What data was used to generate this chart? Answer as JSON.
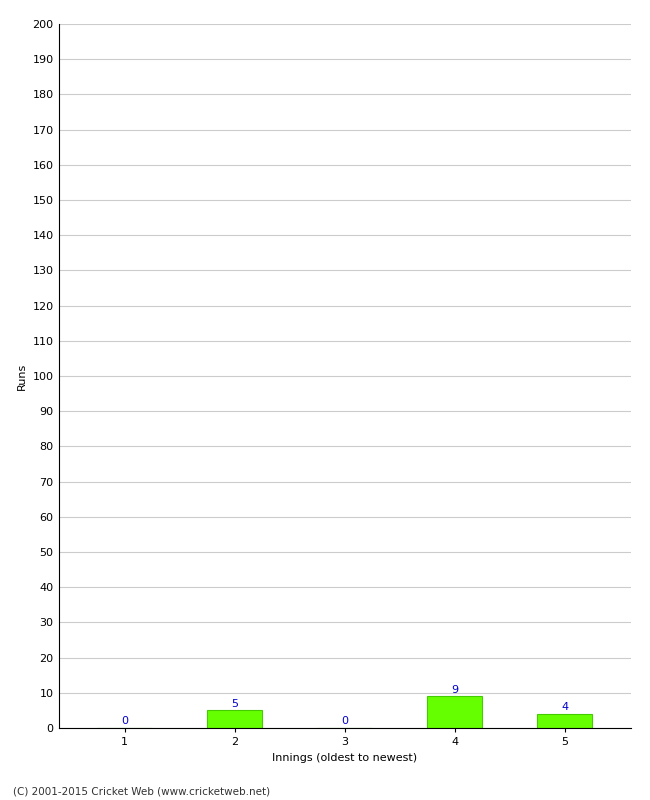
{
  "xlabel": "Innings (oldest to newest)",
  "ylabel": "Runs",
  "categories": [
    1,
    2,
    3,
    4,
    5
  ],
  "values": [
    0,
    5,
    0,
    9,
    4
  ],
  "bar_color": "#66ff00",
  "bar_edge_color": "#44cc00",
  "label_color": "#0000cc",
  "ylim": [
    0,
    200
  ],
  "ytick_step": 10,
  "background_color": "#ffffff",
  "grid_color": "#cccccc",
  "footnote": "(C) 2001-2015 Cricket Web (www.cricketweb.net)"
}
